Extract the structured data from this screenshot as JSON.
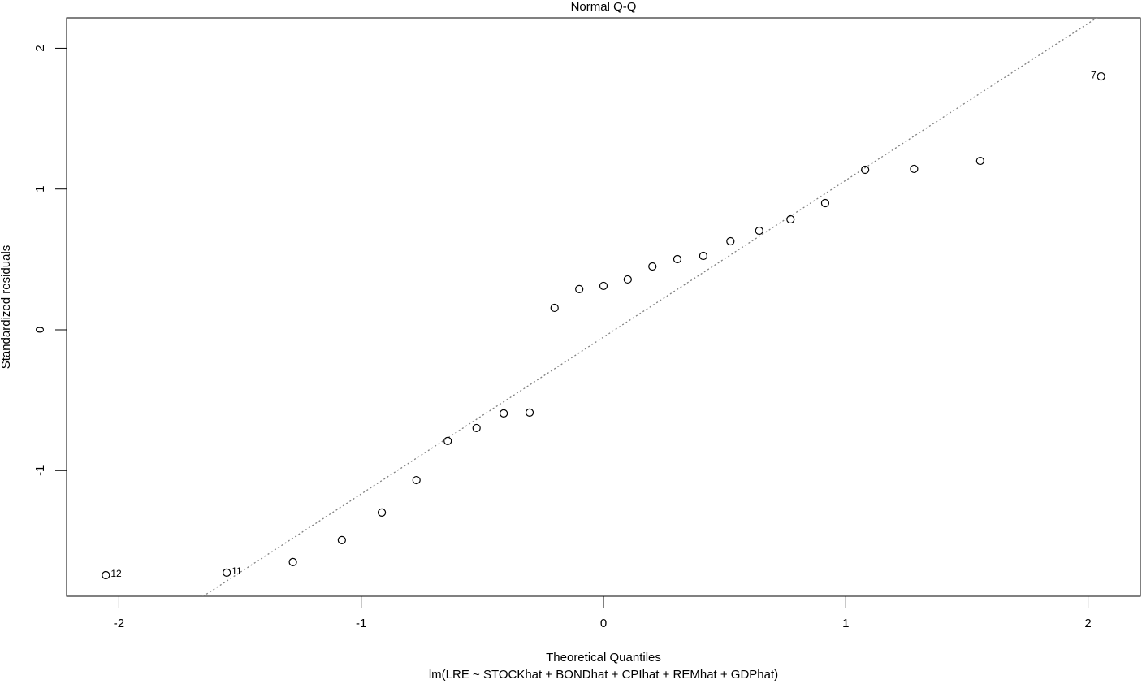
{
  "chart_data": {
    "type": "qq",
    "title": "Normal Q-Q",
    "x_label": "Theoretical Quantiles",
    "subtitle": "lm(LRE ~ STOCKhat + BONDhat + CPIhat + REMhat + GDPhat)",
    "y_label": "Standardized residuals",
    "x": [
      -2.054,
      -1.555,
      -1.282,
      -1.08,
      -0.915,
      -0.772,
      -0.643,
      -0.524,
      -0.412,
      -0.305,
      -0.202,
      -0.1,
      0,
      0.1,
      0.202,
      0.305,
      0.412,
      0.524,
      0.643,
      0.772,
      0.915,
      1.08,
      1.282,
      1.555,
      2.054
    ],
    "values": [
      -1.743,
      -1.725,
      -1.65,
      -1.494,
      -1.298,
      -1.068,
      -0.79,
      -0.698,
      -0.594,
      -0.588,
      0.156,
      0.289,
      0.312,
      0.358,
      0.45,
      0.502,
      0.525,
      0.629,
      0.704,
      0.785,
      0.9,
      1.137,
      1.143,
      1.2,
      1.8
    ],
    "point_labels": [
      "12",
      "11",
      null,
      null,
      null,
      null,
      null,
      null,
      null,
      null,
      null,
      null,
      null,
      null,
      null,
      null,
      null,
      null,
      null,
      null,
      null,
      null,
      null,
      null,
      "7"
    ],
    "qqline": {
      "slope": 1.114,
      "intercept": -0.052,
      "color": "#808080"
    },
    "color": "#000000",
    "xlim": [
      -2.216,
      2.216
    ],
    "ylim": [
      -1.893,
      2.216
    ],
    "xticks": [
      -2,
      -1,
      0,
      1,
      2
    ],
    "yticks": [
      -1,
      0,
      1,
      2
    ]
  }
}
